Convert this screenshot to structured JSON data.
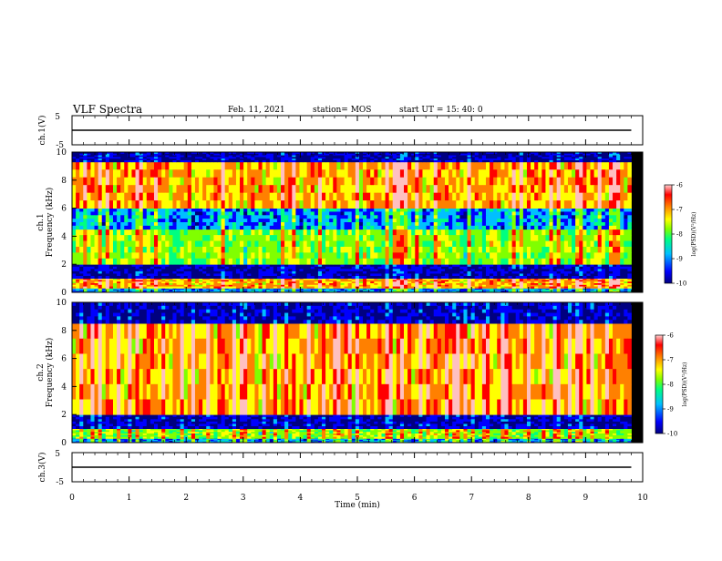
{
  "header": {
    "title": "VLF Spectra",
    "date": "Feb. 11, 2021",
    "station": "station= MOS",
    "start_ut": "start  UT =   15: 40: 0"
  },
  "chart_data": [
    {
      "type": "line",
      "panel": "ch1-voltage",
      "ylabel": "ch.1(V)",
      "ylim": [
        -5,
        5
      ],
      "y_ticks": [
        5,
        -5
      ],
      "series": [
        {
          "values": [
            0,
            0
          ]
        }
      ],
      "x": [
        0,
        9.8
      ]
    },
    {
      "type": "heatmap",
      "panel": "ch1-spectrogram",
      "ylabel": "ch.1\nFrequency (kHz)",
      "ylabel_lines": [
        "ch.1",
        "Frequency (kHz)"
      ],
      "ylim": [
        0,
        10
      ],
      "y_ticks": [
        0,
        2,
        4,
        6,
        8,
        10
      ],
      "x_range": [
        0,
        9.8
      ],
      "bands": [
        {
          "from": 0,
          "to": 0.3,
          "level": "low"
        },
        {
          "from": 0.3,
          "to": 1.0,
          "level": "high"
        },
        {
          "from": 1.0,
          "to": 2.0,
          "level": "very-low"
        },
        {
          "from": 2.0,
          "to": 4.5,
          "level": "medium"
        },
        {
          "from": 4.5,
          "to": 6.0,
          "level": "low"
        },
        {
          "from": 6.0,
          "to": 9.3,
          "level": "high"
        },
        {
          "from": 9.3,
          "to": 10,
          "level": "very-low"
        }
      ],
      "colorbar": {
        "label": "log(PSD)(V²/Hz)",
        "ticks": [
          -6,
          -7,
          -8,
          -9,
          -10
        ],
        "range": [
          -10,
          -6
        ]
      }
    },
    {
      "type": "heatmap",
      "panel": "ch2-spectrogram",
      "ylabel": "ch.2\nFrequency (kHz)",
      "ylabel_lines": [
        "ch.2",
        "Frequency (kHz)"
      ],
      "ylim": [
        0,
        10
      ],
      "y_ticks": [
        0,
        2,
        4,
        6,
        8,
        10
      ],
      "x_range": [
        0,
        9.8
      ],
      "bands": [
        {
          "from": 0,
          "to": 0.3,
          "level": "low"
        },
        {
          "from": 0.3,
          "to": 1.0,
          "level": "medium"
        },
        {
          "from": 1.0,
          "to": 2.0,
          "level": "very-low"
        },
        {
          "from": 2.0,
          "to": 8.5,
          "level": "high"
        },
        {
          "from": 8.5,
          "to": 10,
          "level": "very-low"
        }
      ],
      "colorbar": {
        "label": "log(PSD)(V²/Hz)",
        "ticks": [
          -6,
          -7,
          -8,
          -9,
          -10
        ],
        "range": [
          -10,
          -6
        ]
      }
    },
    {
      "type": "line",
      "panel": "ch3-voltage",
      "ylabel": "ch.3(V)",
      "ylim": [
        -5,
        5
      ],
      "y_ticks": [
        5,
        -5
      ],
      "series": [
        {
          "values": [
            0,
            0
          ]
        }
      ],
      "x": [
        0,
        9.8
      ]
    }
  ],
  "x_axis": {
    "label": "Time  (min)",
    "xlim": [
      0,
      10
    ],
    "ticks": [
      0,
      1,
      2,
      3,
      4,
      5,
      6,
      7,
      8,
      9,
      10
    ]
  },
  "colors": {
    "scale": [
      "#000080",
      "#0000ff",
      "#00c0ff",
      "#00ff80",
      "#80ff00",
      "#ffff00",
      "#ff8000",
      "#ff0000",
      "#ffc0c0"
    ]
  }
}
